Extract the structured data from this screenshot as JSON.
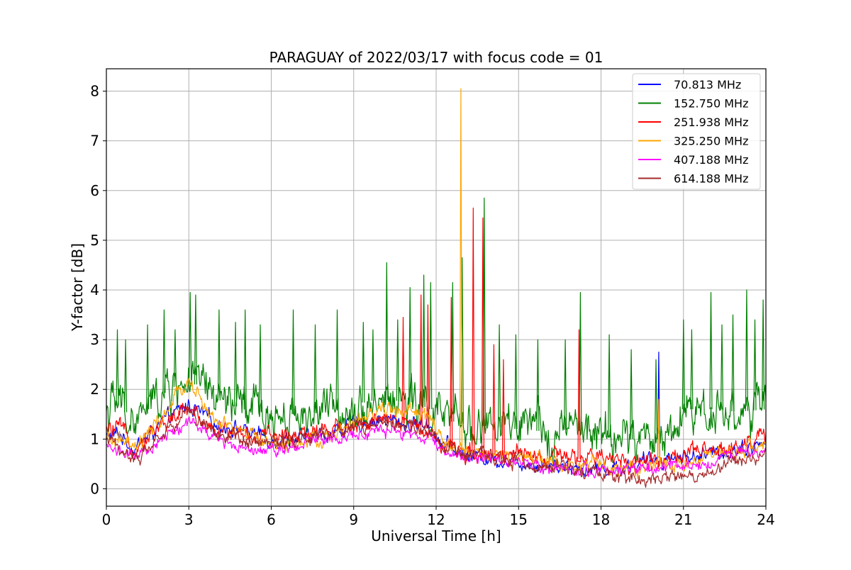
{
  "chart_data": {
    "type": "line",
    "title": "PARAGUAY of 2022/03/17 with focus code = 01",
    "xlabel": "Universal Time [h]",
    "ylabel": "Y-factor [dB]",
    "xlim": [
      0,
      24
    ],
    "ylim": [
      -0.35,
      8.45
    ],
    "x_ticks": [
      0,
      3,
      6,
      9,
      12,
      15,
      18,
      21,
      24
    ],
    "x_tick_labels": [
      "0",
      "3",
      "6",
      "9",
      "12",
      "15",
      "18",
      "21",
      "24"
    ],
    "y_ticks": [
      0,
      1,
      2,
      3,
      4,
      5,
      6,
      7,
      8
    ],
    "y_tick_labels": [
      "0",
      "1",
      "2",
      "3",
      "4",
      "5",
      "6",
      "7",
      "8"
    ],
    "grid": true,
    "legend_position": "top-right",
    "series": [
      {
        "name": " 70.813 MHz",
        "color": "#0000ff",
        "base": [
          [
            0,
            1.05
          ],
          [
            0.5,
            1.1
          ],
          [
            1,
            0.8
          ],
          [
            2,
            1.3
          ],
          [
            3,
            1.7
          ],
          [
            4,
            1.3
          ],
          [
            5,
            1.2
          ],
          [
            6,
            1.0
          ],
          [
            7,
            1.0
          ],
          [
            8,
            1.1
          ],
          [
            9,
            1.3
          ],
          [
            10,
            1.4
          ],
          [
            11,
            1.3
          ],
          [
            11.8,
            1.3
          ],
          [
            12.2,
            0.9
          ],
          [
            13,
            0.7
          ],
          [
            14,
            0.6
          ],
          [
            15,
            0.55
          ],
          [
            16,
            0.5
          ],
          [
            17,
            0.45
          ],
          [
            18,
            0.4
          ],
          [
            19,
            0.45
          ],
          [
            20,
            0.6
          ],
          [
            21,
            0.65
          ],
          [
            22,
            0.7
          ],
          [
            23,
            0.8
          ],
          [
            24,
            0.9
          ]
        ],
        "noise": 0.12,
        "spikes": [
          [
            20.1,
            2.75
          ]
        ]
      },
      {
        "name": "152.750 MHz",
        "color": "#008000",
        "base": [
          [
            0,
            1.6
          ],
          [
            0.5,
            1.7
          ],
          [
            1,
            1.3
          ],
          [
            2,
            1.9
          ],
          [
            3,
            2.2
          ],
          [
            4,
            1.8
          ],
          [
            5,
            1.6
          ],
          [
            6,
            1.5
          ],
          [
            7,
            1.5
          ],
          [
            8,
            1.55
          ],
          [
            9,
            1.7
          ],
          [
            10,
            1.8
          ],
          [
            11,
            1.75
          ],
          [
            11.8,
            1.6
          ],
          [
            12.2,
            1.4
          ],
          [
            13,
            1.3
          ],
          [
            14,
            1.25
          ],
          [
            15,
            1.2
          ],
          [
            16,
            1.15
          ],
          [
            17,
            1.2
          ],
          [
            18,
            1.05
          ],
          [
            19,
            1.0
          ],
          [
            20,
            1.0
          ],
          [
            20.6,
            1.2
          ],
          [
            21,
            1.6
          ],
          [
            22,
            1.6
          ],
          [
            23,
            1.55
          ],
          [
            24,
            1.6
          ]
        ],
        "noise": 0.35,
        "spikes": [
          [
            0.4,
            3.2
          ],
          [
            0.7,
            3.0
          ],
          [
            1.5,
            3.3
          ],
          [
            2.1,
            3.6
          ],
          [
            2.5,
            3.2
          ],
          [
            3.05,
            3.95
          ],
          [
            3.25,
            3.9
          ],
          [
            4.1,
            3.6
          ],
          [
            4.7,
            3.35
          ],
          [
            5.05,
            3.6
          ],
          [
            5.6,
            3.3
          ],
          [
            6.8,
            3.6
          ],
          [
            7.6,
            3.3
          ],
          [
            8.4,
            3.6
          ],
          [
            9.35,
            3.35
          ],
          [
            9.7,
            3.2
          ],
          [
            10.2,
            4.55
          ],
          [
            10.6,
            3.4
          ],
          [
            11.05,
            4.05
          ],
          [
            11.55,
            4.3
          ],
          [
            11.8,
            4.15
          ],
          [
            12.6,
            4.15
          ],
          [
            12.95,
            4.65
          ],
          [
            13.75,
            5.85
          ],
          [
            14.3,
            3.3
          ],
          [
            14.9,
            3.1
          ],
          [
            15.7,
            3.0
          ],
          [
            16.7,
            3.0
          ],
          [
            17.25,
            3.95
          ],
          [
            18.3,
            3.1
          ],
          [
            19.1,
            2.8
          ],
          [
            20.0,
            2.6
          ],
          [
            21.0,
            3.4
          ],
          [
            21.3,
            3.2
          ],
          [
            22.0,
            3.95
          ],
          [
            22.4,
            3.3
          ],
          [
            22.8,
            3.5
          ],
          [
            23.3,
            4.0
          ],
          [
            23.6,
            3.4
          ],
          [
            23.9,
            3.8
          ]
        ]
      },
      {
        "name": "251.938 MHz",
        "color": "#ff0000",
        "base": [
          [
            0,
            1.15
          ],
          [
            0.5,
            1.2
          ],
          [
            1,
            0.85
          ],
          [
            2,
            1.3
          ],
          [
            3,
            1.6
          ],
          [
            4,
            1.2
          ],
          [
            5,
            1.1
          ],
          [
            6,
            1.0
          ],
          [
            7,
            1.15
          ],
          [
            8,
            1.2
          ],
          [
            9,
            1.3
          ],
          [
            10,
            1.35
          ],
          [
            11,
            1.3
          ],
          [
            11.8,
            1.2
          ],
          [
            12.2,
            0.85
          ],
          [
            13,
            0.75
          ],
          [
            14,
            0.7
          ],
          [
            15,
            0.65
          ],
          [
            16,
            0.6
          ],
          [
            17,
            0.6
          ],
          [
            18,
            0.6
          ],
          [
            19,
            0.55
          ],
          [
            20,
            0.6
          ],
          [
            21,
            0.65
          ],
          [
            22,
            0.75
          ],
          [
            23,
            0.9
          ],
          [
            24,
            1.05
          ]
        ],
        "noise": 0.14,
        "spikes": [
          [
            10.8,
            3.45
          ],
          [
            11.45,
            3.9
          ],
          [
            11.7,
            3.7
          ],
          [
            12.55,
            3.85
          ],
          [
            13.35,
            5.65
          ],
          [
            13.7,
            5.45
          ],
          [
            14.1,
            2.9
          ],
          [
            14.45,
            2.6
          ],
          [
            17.2,
            3.2
          ]
        ]
      },
      {
        "name": "325.250 MHz",
        "color": "#ffa500",
        "base": [
          [
            0,
            0.95
          ],
          [
            0.5,
            1.0
          ],
          [
            1,
            0.75
          ],
          [
            2,
            1.4
          ],
          [
            3,
            2.2
          ],
          [
            3.3,
            1.9
          ],
          [
            4,
            1.3
          ],
          [
            5,
            1.15
          ],
          [
            6,
            0.9
          ],
          [
            7,
            0.9
          ],
          [
            8,
            1.0
          ],
          [
            9,
            1.3
          ],
          [
            10,
            1.6
          ],
          [
            11,
            1.55
          ],
          [
            11.8,
            1.45
          ],
          [
            12.2,
            0.9
          ],
          [
            13,
            0.75
          ],
          [
            14,
            0.7
          ],
          [
            15,
            0.6
          ],
          [
            16,
            0.55
          ],
          [
            17,
            0.5
          ],
          [
            18,
            0.45
          ],
          [
            19,
            0.4
          ],
          [
            20,
            0.45
          ],
          [
            21,
            0.55
          ],
          [
            22,
            0.6
          ],
          [
            23,
            0.75
          ],
          [
            24,
            0.95
          ]
        ],
        "noise": 0.12,
        "spikes": [
          [
            12.9,
            8.05
          ],
          [
            20.1,
            1.8
          ]
        ]
      },
      {
        "name": "407.188 MHz",
        "color": "#ff00ff",
        "base": [
          [
            0,
            0.85
          ],
          [
            0.5,
            0.8
          ],
          [
            1,
            0.55
          ],
          [
            2,
            1.0
          ],
          [
            3,
            1.35
          ],
          [
            4,
            1.0
          ],
          [
            5,
            0.85
          ],
          [
            6,
            0.8
          ],
          [
            7,
            0.9
          ],
          [
            8,
            1.05
          ],
          [
            9,
            1.1
          ],
          [
            10,
            1.15
          ],
          [
            11,
            1.1
          ],
          [
            11.8,
            1.0
          ],
          [
            12.2,
            0.75
          ],
          [
            13,
            0.65
          ],
          [
            14,
            0.6
          ],
          [
            15,
            0.55
          ],
          [
            16,
            0.45
          ],
          [
            17,
            0.4
          ],
          [
            18,
            0.35
          ],
          [
            19,
            0.35
          ],
          [
            20,
            0.4
          ],
          [
            21,
            0.45
          ],
          [
            22,
            0.55
          ],
          [
            23,
            0.7
          ],
          [
            24,
            0.85
          ]
        ],
        "noise": 0.1,
        "spikes": []
      },
      {
        "name": "614.188 MHz",
        "color": "#a52a2a",
        "base": [
          [
            0,
            0.95
          ],
          [
            0.5,
            0.85
          ],
          [
            1,
            0.55
          ],
          [
            2,
            1.1
          ],
          [
            3,
            1.55
          ],
          [
            4,
            1.15
          ],
          [
            5,
            1.0
          ],
          [
            6,
            0.9
          ],
          [
            7,
            1.0
          ],
          [
            8,
            1.15
          ],
          [
            9,
            1.25
          ],
          [
            10,
            1.3
          ],
          [
            11,
            1.25
          ],
          [
            11.8,
            1.15
          ],
          [
            12.2,
            0.8
          ],
          [
            13,
            0.7
          ],
          [
            14,
            0.6
          ],
          [
            15,
            0.55
          ],
          [
            16,
            0.45
          ],
          [
            17,
            0.4
          ],
          [
            18,
            0.3
          ],
          [
            19,
            0.2
          ],
          [
            20,
            0.2
          ],
          [
            21,
            0.25
          ],
          [
            22,
            0.35
          ],
          [
            23,
            0.55
          ],
          [
            24,
            0.75
          ]
        ],
        "noise": 0.11,
        "spikes": []
      }
    ]
  }
}
